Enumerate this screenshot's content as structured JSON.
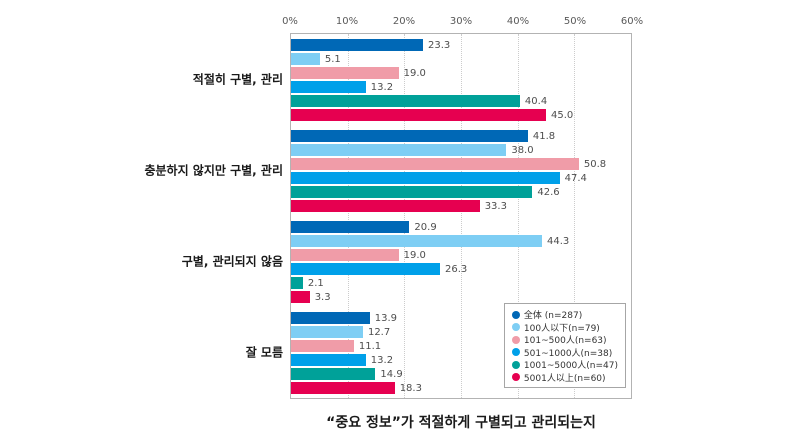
{
  "title": "“중요 정보”가 적절하게 구별되고 관리되는지",
  "chart_data": {
    "type": "bar",
    "orientation": "horizontal",
    "title": "“중요 정보”가 적절하게 구별되고 관리되는지",
    "categories": [
      "적절히 구별, 관리",
      "충분하지 않지만 구별, 관리",
      "구별, 관리되지 않음",
      "잘 모름"
    ],
    "series": [
      {
        "name": "全体 (n=287)",
        "color": "#0068B6",
        "values": [
          23.3,
          41.8,
          20.9,
          13.9
        ]
      },
      {
        "name": "100人以下(n=79)",
        "color": "#7ECEF4",
        "values": [
          5.1,
          38.0,
          44.3,
          12.7
        ]
      },
      {
        "name": "101~500人(n=63)",
        "color": "#F09CA8",
        "values": [
          19.0,
          50.8,
          19.0,
          11.1
        ]
      },
      {
        "name": "501~1000人(n=38)",
        "color": "#00A0E9",
        "values": [
          13.2,
          47.4,
          26.3,
          13.2
        ]
      },
      {
        "name": "1001~5000人(n=47)",
        "color": "#00A199",
        "values": [
          40.4,
          42.6,
          2.1,
          14.9
        ]
      },
      {
        "name": "5001人以上(n=60)",
        "color": "#E60050",
        "values": [
          45.0,
          33.3,
          3.3,
          18.3
        ]
      }
    ],
    "x_axis": {
      "min": 0,
      "max": 60,
      "ticks": [
        "0%",
        "10%",
        "20%",
        "30%",
        "40%",
        "50%",
        "60%"
      ]
    },
    "value_label_decimals": 1,
    "grid": "vertical-dotted",
    "legend_position": "inside-bottom-right"
  }
}
